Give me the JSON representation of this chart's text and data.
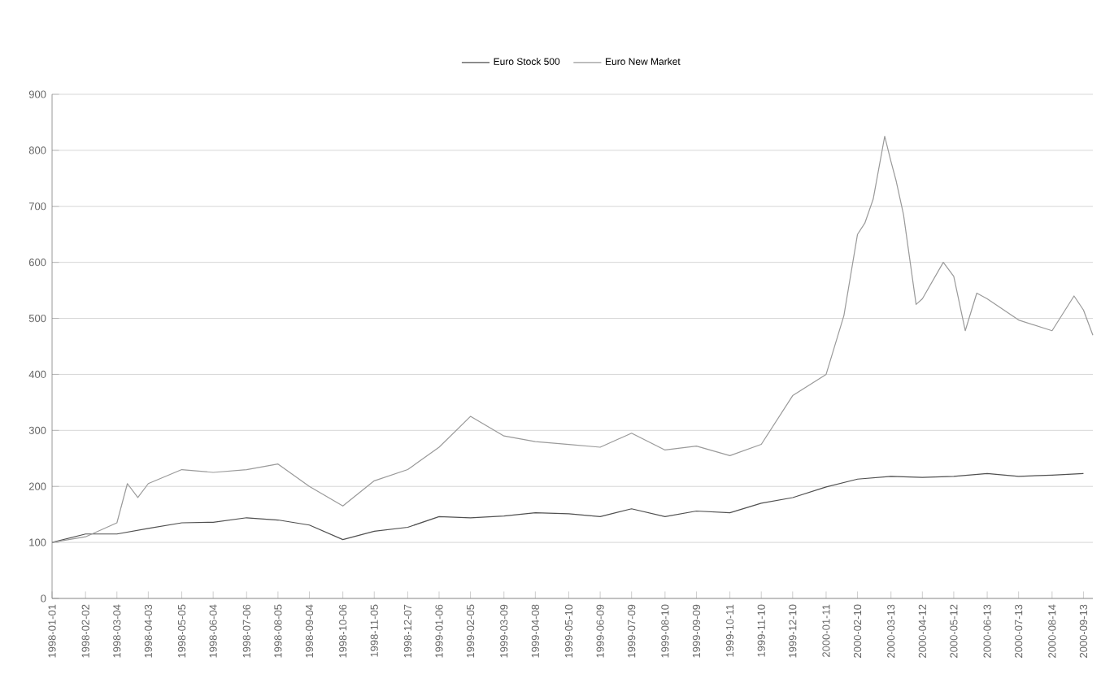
{
  "chart_data": {
    "type": "line",
    "xticks": [
      "1998-01-01",
      "1998-02-02",
      "1998-03-04",
      "1998-04-03",
      "1998-05-05",
      "1998-06-04",
      "1998-07-06",
      "1998-08-05",
      "1998-09-04",
      "1998-10-06",
      "1998-11-05",
      "1998-12-07",
      "1999-01-06",
      "1999-02-05",
      "1999-03-09",
      "1999-04-08",
      "1999-05-10",
      "1999-06-09",
      "1999-07-09",
      "1999-08-10",
      "1999-09-09",
      "1999-10-11",
      "1999-11-10",
      "1999-12-10",
      "2000-01-11",
      "2000-02-10",
      "2000-03-13",
      "2000-04-12",
      "2000-05-12",
      "2000-06-13",
      "2000-07-13",
      "2000-08-14",
      "2000-09-13"
    ],
    "xlim": [
      "1998-01-01",
      "2000-09-22"
    ],
    "ylim": [
      0,
      900
    ],
    "yticks": [
      0,
      100,
      200,
      300,
      400,
      500,
      600,
      700,
      800,
      900
    ],
    "grid": "y",
    "legend": "top",
    "series": [
      {
        "name": "Euro Stock 500",
        "color": "#505050",
        "x": [
          "1998-01-01",
          "1998-02-02",
          "1998-03-04",
          "1998-04-03",
          "1998-05-05",
          "1998-06-04",
          "1998-07-06",
          "1998-08-05",
          "1998-09-04",
          "1998-10-06",
          "1998-11-05",
          "1998-12-07",
          "1999-01-06",
          "1999-02-05",
          "1999-03-09",
          "1999-04-08",
          "1999-05-10",
          "1999-06-09",
          "1999-07-09",
          "1999-08-10",
          "1999-09-09",
          "1999-10-11",
          "1999-11-10",
          "1999-12-10",
          "2000-01-11",
          "2000-02-10",
          "2000-03-13",
          "2000-04-12",
          "2000-05-12",
          "2000-06-13",
          "2000-07-13",
          "2000-08-14",
          "2000-09-13"
        ],
        "values": [
          100,
          115,
          115,
          125,
          135,
          136,
          144,
          140,
          131,
          105,
          120,
          127,
          146,
          144,
          147,
          153,
          151,
          146,
          160,
          146,
          156,
          153,
          170,
          180,
          199,
          213,
          218,
          216,
          218,
          223,
          218,
          220,
          223
        ]
      },
      {
        "name": "Euro New Market",
        "color": "#9a9a9a",
        "x": [
          "1998-01-01",
          "1998-02-02",
          "1998-03-04",
          "1998-03-14",
          "1998-03-24",
          "1998-04-03",
          "1998-05-05",
          "1998-06-04",
          "1998-07-06",
          "1998-08-05",
          "1998-09-04",
          "1998-10-06",
          "1998-11-05",
          "1998-12-07",
          "1999-01-06",
          "1999-02-05",
          "1999-03-09",
          "1999-04-08",
          "1999-05-10",
          "1999-06-09",
          "1999-07-09",
          "1999-08-10",
          "1999-09-09",
          "1999-10-11",
          "1999-11-10",
          "1999-12-10",
          "2000-01-11",
          "2000-01-28",
          "2000-02-10",
          "2000-02-17",
          "2000-02-25",
          "2000-03-07",
          "2000-03-13",
          "2000-03-18",
          "2000-03-25",
          "2000-04-06",
          "2000-04-12",
          "2000-05-02",
          "2000-05-12",
          "2000-05-23",
          "2000-06-03",
          "2000-06-13",
          "2000-07-13",
          "2000-08-14",
          "2000-09-04",
          "2000-09-13",
          "2000-09-22"
        ],
        "values": [
          100,
          110,
          135,
          205,
          180,
          205,
          230,
          225,
          230,
          240,
          200,
          165,
          210,
          230,
          270,
          325,
          290,
          280,
          275,
          270,
          295,
          265,
          272,
          255,
          275,
          362,
          400,
          505,
          650,
          670,
          713,
          825,
          780,
          745,
          685,
          525,
          535,
          600,
          575,
          478,
          545,
          535,
          497,
          478,
          540,
          515,
          470
        ]
      }
    ]
  }
}
